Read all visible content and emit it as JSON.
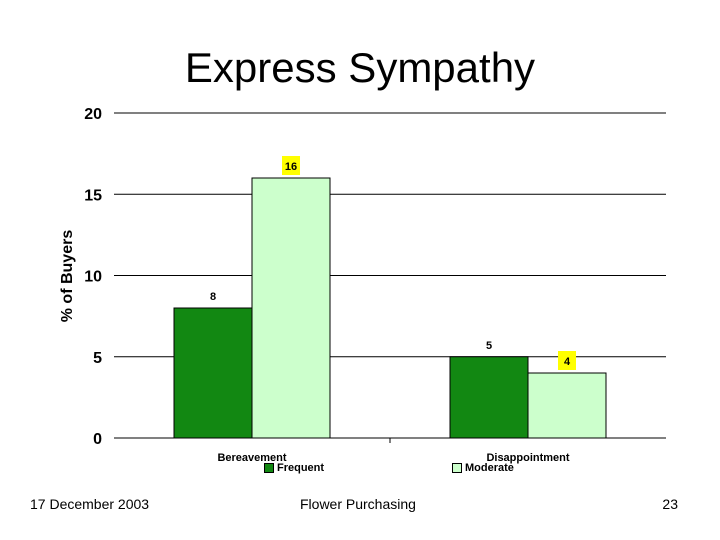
{
  "slide": {
    "title": "Express Sympathy",
    "footer_left": "17 December 2003",
    "footer_center": "Flower Purchasing",
    "footer_right": "23"
  },
  "chart_data": {
    "type": "bar",
    "categories": [
      "Bereavement",
      "Disappointment"
    ],
    "series": [
      {
        "name": "Frequent",
        "values": [
          8,
          5
        ],
        "color": "#128812"
      },
      {
        "name": "Moderate",
        "values": [
          16,
          4
        ],
        "color": "#ccffcc"
      }
    ],
    "ylabel": "% of Buyers",
    "ylim": [
      0,
      20
    ],
    "yticks": [
      0,
      5,
      10,
      15,
      20
    ],
    "grid": true,
    "legend": "bottom",
    "highlight_labels": [
      "Moderate"
    ],
    "highlight_color": "#ffff00"
  }
}
